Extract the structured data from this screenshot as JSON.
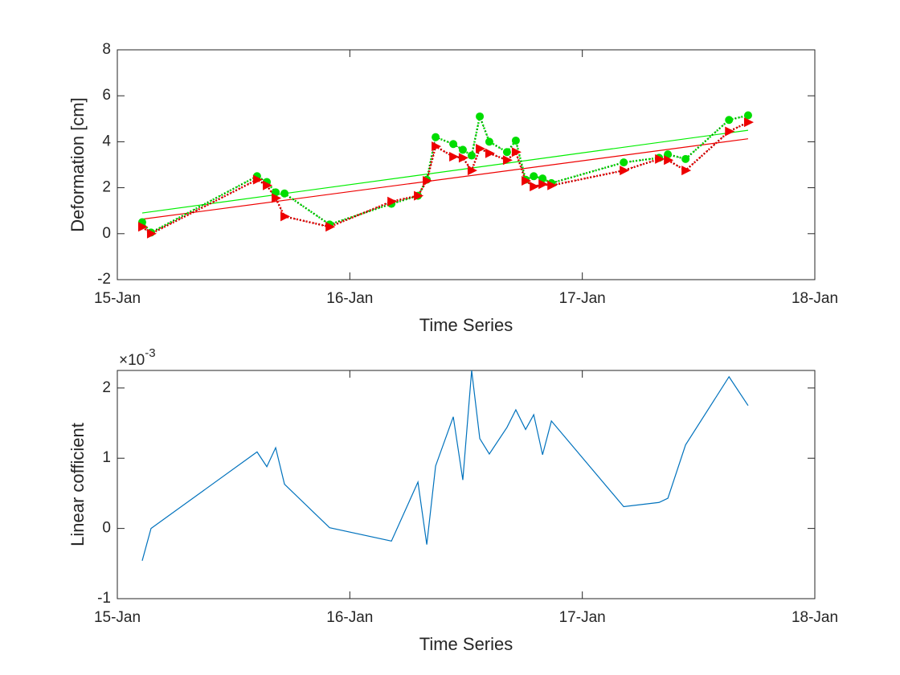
{
  "chart_data": [
    {
      "type": "line",
      "xlabel": "Time Series",
      "ylabel": "Deformation [cm]",
      "xlim": [
        15,
        18
      ],
      "xticks": [
        {
          "value": 15,
          "label": "15-Jan"
        },
        {
          "value": 16,
          "label": "16-Jan"
        },
        {
          "value": 17,
          "label": "17-Jan"
        },
        {
          "value": 18,
          "label": "18-Jan"
        }
      ],
      "ylim": [
        -2,
        8
      ],
      "yticks": [
        -2,
        0,
        2,
        4,
        6,
        8
      ],
      "x": [
        15.107,
        15.145,
        15.601,
        15.643,
        15.681,
        15.719,
        15.913,
        16.179,
        16.293,
        16.331,
        16.369,
        16.445,
        16.486,
        16.524,
        16.559,
        16.6,
        16.676,
        16.714,
        16.756,
        16.791,
        16.829,
        16.867,
        17.178,
        17.33,
        17.368,
        17.444,
        17.631,
        17.713
      ],
      "series": [
        {
          "color": "#00dd00",
          "marker": "circle",
          "values": [
            0.5,
            0.05,
            2.5,
            2.25,
            1.8,
            1.75,
            0.4,
            1.3,
            1.65,
            2.35,
            4.2,
            3.9,
            3.65,
            3.4,
            5.1,
            4.0,
            3.55,
            4.05,
            2.35,
            2.5,
            2.4,
            2.2,
            3.1,
            3.3,
            3.45,
            3.25,
            4.95,
            5.15
          ]
        },
        {
          "color": "#ee0000",
          "marker": "triangle",
          "values": [
            0.3,
            0.0,
            2.35,
            2.1,
            1.55,
            0.75,
            0.3,
            1.4,
            1.65,
            2.3,
            3.8,
            3.35,
            3.3,
            2.75,
            3.7,
            3.5,
            3.2,
            3.55,
            2.3,
            2.05,
            2.15,
            2.1,
            2.75,
            3.25,
            3.2,
            2.75,
            4.45,
            4.85
          ]
        }
      ],
      "fits": [
        {
          "color": "#00ee00",
          "x": [
            15.107,
            17.713
          ],
          "values": [
            0.9,
            4.5
          ]
        },
        {
          "color": "#ee0000",
          "x": [
            15.107,
            17.713
          ],
          "values": [
            0.63,
            4.13
          ]
        }
      ]
    },
    {
      "type": "line",
      "xlabel": "Time Series",
      "ylabel": "Linear cofficient",
      "multiplier": {
        "base": "×10",
        "exponent": "-3"
      },
      "xlim": [
        15,
        18
      ],
      "xticks": [
        {
          "value": 15,
          "label": "15-Jan"
        },
        {
          "value": 16,
          "label": "16-Jan"
        },
        {
          "value": 17,
          "label": "17-Jan"
        },
        {
          "value": 18,
          "label": "18-Jan"
        }
      ],
      "ylim": [
        -1,
        2.25
      ],
      "yticks": [
        -1,
        0,
        1,
        2
      ],
      "x": [
        15.107,
        15.145,
        15.601,
        15.643,
        15.681,
        15.719,
        15.913,
        16.179,
        16.293,
        16.331,
        16.369,
        16.445,
        16.486,
        16.524,
        16.559,
        16.6,
        16.676,
        16.714,
        16.756,
        16.791,
        16.829,
        16.867,
        17.178,
        17.33,
        17.368,
        17.444,
        17.631,
        17.713
      ],
      "series": [
        {
          "color": "#0072bd",
          "values": [
            -0.46,
            0.0,
            1.09,
            0.88,
            1.15,
            0.63,
            0.01,
            -0.18,
            0.66,
            -0.23,
            0.89,
            1.59,
            0.69,
            2.25,
            1.28,
            1.06,
            1.44,
            1.69,
            1.41,
            1.62,
            1.05,
            1.53,
            0.31,
            0.37,
            0.43,
            1.19,
            2.16,
            1.75
          ]
        }
      ]
    }
  ]
}
